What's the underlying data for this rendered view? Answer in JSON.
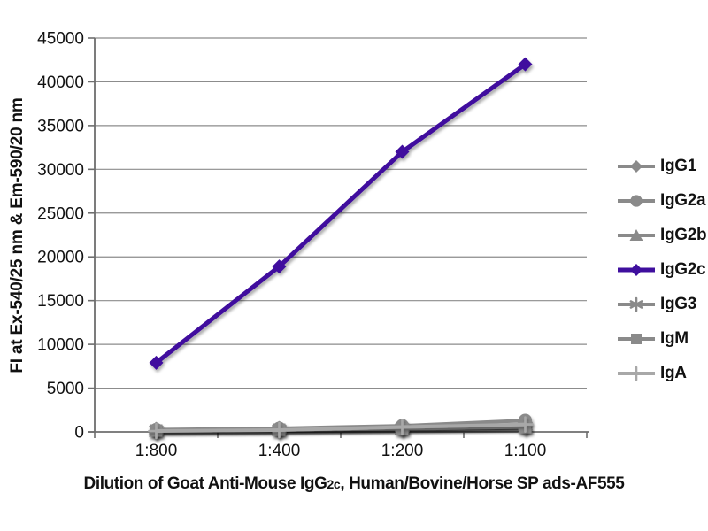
{
  "colors": {
    "accent_purple": "#3F0F9E",
    "series_gray": "#8A8A8A",
    "series_gray_light": "#A8A8A8",
    "gridline": "#8C8C8C",
    "axis": "#6E6E6E",
    "text": "#111111"
  },
  "chart_data": {
    "type": "line",
    "categories": [
      "1:800",
      "1:400",
      "1:200",
      "1:100"
    ],
    "series": [
      {
        "name": "IgG1",
        "marker": "diamond",
        "color": "#8A8A8A",
        "highlight": false,
        "values": [
          100,
          200,
          300,
          450
        ]
      },
      {
        "name": "IgG2a",
        "marker": "circle",
        "color": "#8A8A8A",
        "highlight": false,
        "values": [
          250,
          400,
          700,
          1300
        ]
      },
      {
        "name": "IgG2b",
        "marker": "triangle",
        "color": "#8A8A8A",
        "highlight": false,
        "values": [
          150,
          250,
          400,
          600
        ]
      },
      {
        "name": "IgG2c",
        "marker": "diamond",
        "color": "#3F0F9E",
        "highlight": true,
        "values": [
          7900,
          18900,
          32000,
          42000
        ]
      },
      {
        "name": "IgG3",
        "marker": "asterisk",
        "color": "#8A8A8A",
        "highlight": false,
        "values": [
          200,
          300,
          450,
          650
        ]
      },
      {
        "name": "IgM",
        "marker": "square",
        "color": "#8A8A8A",
        "highlight": false,
        "values": [
          150,
          250,
          350,
          550
        ]
      },
      {
        "name": "IgA",
        "marker": "plus",
        "color": "#A8A8A8",
        "highlight": false,
        "values": [
          100,
          200,
          550,
          850
        ]
      }
    ],
    "title": "",
    "xlabel": "Dilution of Goat Anti-Mouse IgG2c, Human/Bovine/Horse SP ads-AF555",
    "xlabel_parts": {
      "pre": "Dilution of Goat Anti-Mouse IgG",
      "sub": "2c",
      "post": ", Human/Bovine/Horse SP ads-AF555"
    },
    "ylabel": "FI at Ex-540/25 nm & Em-590/20 nm",
    "ylim": [
      0,
      45000
    ],
    "ytick_step": 5000,
    "grid": true,
    "legend_position": "right"
  }
}
